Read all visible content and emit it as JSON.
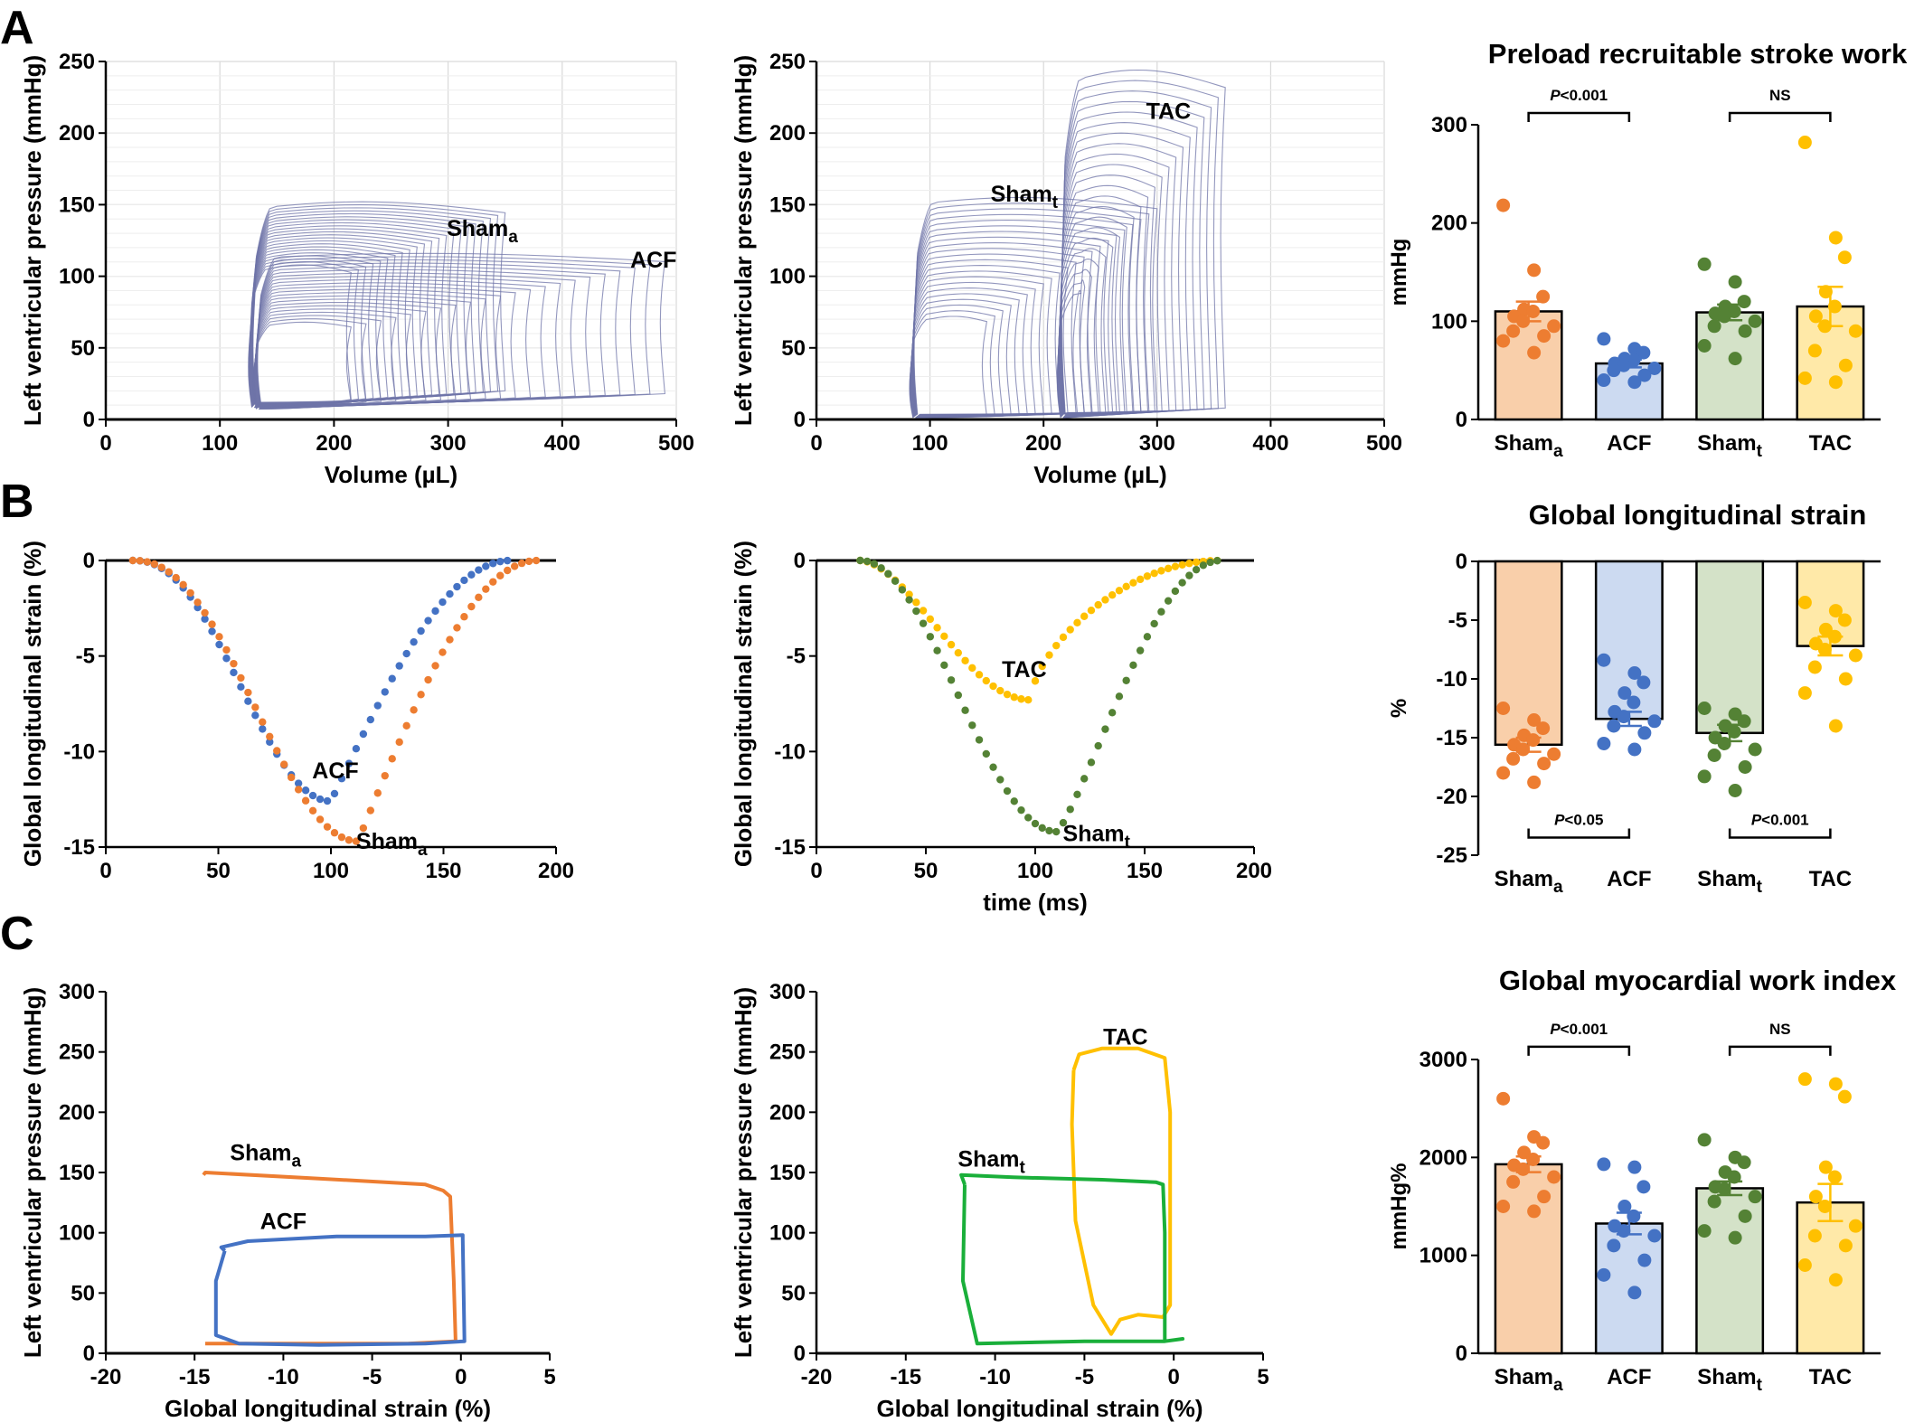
{
  "colors": {
    "orange": "#ED7D31",
    "blue": "#4472C4",
    "green": "#548235",
    "gold": "#FFC000",
    "bright_green": "#1AAF3A",
    "pv_loop": "#6F74A8",
    "bar_orange": "#F9CFAA",
    "bar_blue": "#CCDAF1",
    "bar_green": "#D4E2C8",
    "bar_gold": "#FFE9A8"
  },
  "panel_labels": [
    "A",
    "B",
    "C"
  ],
  "chart_data": [
    {
      "id": "a_left",
      "type": "line",
      "panel": "A",
      "xlabel": "Volume (µL)",
      "ylabel": "Left ventricular pressure (mmHg)",
      "xlim": [
        0,
        500
      ],
      "ylim": [
        0,
        250
      ],
      "grid": true,
      "xticks": [
        "0",
        "100",
        "200",
        "300",
        "400",
        "500"
      ],
      "yticks": [
        "0",
        "50",
        "100",
        "150",
        "200",
        "250"
      ],
      "labels": [
        {
          "text": "Sham",
          "sub": "a"
        },
        {
          "text": "ACF",
          "sub": ""
        }
      ],
      "series": [
        {
          "family": "Sham",
          "ved_range": [
            215,
            350
          ],
          "esv": 128,
          "edp_range": [
            14,
            20
          ],
          "peak_range": [
            108,
            152
          ]
        },
        {
          "family": "ACF",
          "ved_range": [
            215,
            490
          ],
          "esv": 132,
          "edp_range": [
            12,
            18
          ],
          "peak_range": [
            68,
            116
          ]
        }
      ]
    },
    {
      "id": "a_mid",
      "type": "line",
      "panel": "A",
      "xlabel": "Volume (µL)",
      "ylabel": "Left ventricular pressure (mmHg)",
      "xlim": [
        0,
        500
      ],
      "ylim": [
        0,
        250
      ],
      "grid": true,
      "xticks": [
        "0",
        "100",
        "200",
        "300",
        "400",
        "500"
      ],
      "yticks": [
        "0",
        "50",
        "100",
        "150",
        "200",
        "250"
      ],
      "labels": [
        {
          "text": "TAC",
          "sub": ""
        },
        {
          "text": "Sham",
          "sub": "t"
        }
      ],
      "series": [
        {
          "family": "Sham",
          "ved_range": [
            150,
            300
          ],
          "esv": 85,
          "edp_range": [
            2,
            6
          ],
          "peak_range": [
            72,
            155
          ]
        },
        {
          "family": "TAC",
          "ved_range": [
            230,
            360
          ],
          "esv": 215,
          "edp_range": [
            2,
            8
          ],
          "peak_range": [
            90,
            244
          ]
        }
      ]
    },
    {
      "id": "a_right",
      "type": "bar",
      "panel": "A",
      "title": "Preload recruitable stroke work",
      "ylabel": "mmHg",
      "ylim": [
        0,
        300
      ],
      "yticks": [
        "0",
        "100",
        "200",
        "300"
      ],
      "categories": [
        {
          "text": "Sham",
          "sub": "a"
        },
        {
          "text": "ACF",
          "sub": ""
        },
        {
          "text": "Sham",
          "sub": "t"
        },
        {
          "text": "TAC",
          "sub": ""
        }
      ],
      "values": [
        110,
        57,
        109,
        115
      ],
      "sem": [
        10,
        4,
        8,
        20
      ],
      "points": [
        [
          218,
          152,
          125,
          112,
          110,
          105,
          100,
          95,
          90,
          85,
          80,
          68
        ],
        [
          82,
          72,
          68,
          62,
          60,
          57,
          55,
          52,
          50,
          45,
          40,
          38
        ],
        [
          158,
          140,
          120,
          115,
          110,
          108,
          105,
          100,
          95,
          90,
          75,
          62
        ],
        [
          282,
          185,
          165,
          130,
          115,
          105,
          95,
          90,
          70,
          55,
          42,
          38
        ]
      ],
      "significance": [
        {
          "from": 0,
          "to": 1,
          "text": "P<0.001",
          "italic_p": true,
          "y": 312
        },
        {
          "from": 2,
          "to": 3,
          "text": "NS",
          "italic_p": false,
          "y": 312
        }
      ]
    },
    {
      "id": "b_left",
      "type": "scatter",
      "panel": "B",
      "xlabel": "",
      "ylabel": "Global longitudinal strain (%)",
      "xlim": [
        0,
        200
      ],
      "ylim": [
        -15,
        0
      ],
      "xticks": [
        "0",
        "50",
        "100",
        "150",
        "200"
      ],
      "yticks": [
        "0",
        "-5",
        "-10",
        "-15"
      ],
      "labels": [
        {
          "text": "ACF",
          "sub": ""
        },
        {
          "text": "Sham",
          "sub": "a"
        }
      ],
      "series": [
        {
          "family": "ACF",
          "t_start": 12,
          "t_min": 100,
          "t_end": 180,
          "min": -12.6,
          "fall_exp": 1.15,
          "rise_exp": 0.5
        },
        {
          "family": "Sham",
          "t_start": 12,
          "t_min": 112,
          "t_end": 192,
          "min": -14.7,
          "fall_exp": 1.15,
          "rise_exp": 0.5
        }
      ]
    },
    {
      "id": "b_mid",
      "type": "scatter",
      "panel": "B",
      "xlabel": "time (ms)",
      "ylabel": "Global longitudinal strain (%)",
      "xlim": [
        0,
        200
      ],
      "ylim": [
        -15,
        0
      ],
      "xticks": [
        "0",
        "50",
        "100",
        "150",
        "200"
      ],
      "yticks": [
        "0",
        "-5",
        "-10",
        "-15"
      ],
      "labels": [
        {
          "text": "TAC",
          "sub": ""
        },
        {
          "text": "Sham",
          "sub": "t"
        }
      ],
      "series": [
        {
          "family": "TAC",
          "t_start": 20,
          "t_min": 98,
          "t_end": 185,
          "min": -7.3,
          "fall_exp": 0.85,
          "rise_exp": 0.3
        },
        {
          "family": "Sham",
          "t_start": 20,
          "t_min": 110,
          "t_end": 185,
          "min": -14.2,
          "fall_exp": 1.0,
          "rise_exp": 0.6
        }
      ]
    },
    {
      "id": "b_right",
      "type": "bar",
      "panel": "B",
      "title": "Global longitudinal strain",
      "ylabel": "%",
      "ylim": [
        -25,
        0
      ],
      "yticks": [
        "0",
        "-5",
        "-10",
        "-15",
        "-20",
        "-25"
      ],
      "categories": [
        {
          "text": "Sham",
          "sub": "a"
        },
        {
          "text": "ACF",
          "sub": ""
        },
        {
          "text": "Sham",
          "sub": "t"
        },
        {
          "text": "TAC",
          "sub": ""
        }
      ],
      "values": [
        -15.6,
        -13.4,
        -14.6,
        -7.2
      ],
      "sem": [
        0.6,
        0.6,
        0.7,
        0.8
      ],
      "points": [
        [
          -12.5,
          -13.5,
          -14.2,
          -14.8,
          -15.2,
          -15.6,
          -16.0,
          -16.4,
          -16.8,
          -17.2,
          -18.0,
          -18.8
        ],
        [
          -8.4,
          -9.5,
          -10.3,
          -11.2,
          -12.0,
          -12.8,
          -13.2,
          -13.6,
          -14.0,
          -14.6,
          -15.5,
          -16.0
        ],
        [
          -12.5,
          -13.0,
          -13.6,
          -14.0,
          -14.5,
          -15.0,
          -15.5,
          -16.0,
          -16.5,
          -17.5,
          -18.3,
          -19.5
        ],
        [
          -3.5,
          -4.2,
          -5.0,
          -5.8,
          -6.4,
          -7.0,
          -7.5,
          -8.0,
          -9.0,
          -10.0,
          -11.2,
          -14.0
        ]
      ],
      "significance": [
        {
          "from": 0,
          "to": 1,
          "text": "P<0.05",
          "italic_p": true,
          "y": -23.5
        },
        {
          "from": 2,
          "to": 3,
          "text": "P<0.001",
          "italic_p": true,
          "y": -23.5
        }
      ]
    },
    {
      "id": "c_left",
      "type": "line",
      "panel": "C",
      "xlabel": "Global longitudinal strain (%)",
      "ylabel": "Left ventricular pressure (mmHg)",
      "xlim": [
        -20,
        5
      ],
      "ylim": [
        0,
        300
      ],
      "xticks": [
        "-20",
        "-15",
        "-10",
        "-5",
        "0",
        "5"
      ],
      "yticks": [
        "0",
        "50",
        "100",
        "150",
        "200",
        "250",
        "300"
      ],
      "labels": [
        {
          "text": "Sham",
          "sub": "a"
        },
        {
          "text": "ACF",
          "sub": ""
        }
      ],
      "series": [
        {
          "family": "Sham",
          "x": [
            -14.5,
            -14.4,
            -8,
            -2,
            -1,
            -0.6,
            -0.4,
            -0.3,
            -3,
            -10,
            -14.4
          ],
          "y": [
            148,
            150,
            145,
            140,
            135,
            130,
            60,
            10,
            8,
            8,
            8
          ]
        },
        {
          "family": "ACF",
          "x": [
            -13.3,
            -13.5,
            -12,
            -7,
            -2,
            0.1,
            0.1,
            0.2,
            -2,
            -8,
            -12.5,
            -13.8,
            -13.8,
            -13.3
          ],
          "y": [
            85,
            88,
            93,
            97,
            97,
            98,
            95,
            10,
            8,
            7,
            8,
            15,
            60,
            85
          ]
        }
      ]
    },
    {
      "id": "c_mid",
      "type": "line",
      "panel": "C",
      "xlabel": "Global longitudinal strain (%)",
      "ylabel": "Left ventricular pressure (mmHg)",
      "xlim": [
        -20,
        5
      ],
      "ylim": [
        0,
        300
      ],
      "xticks": [
        "-20",
        "-15",
        "-10",
        "-5",
        "0",
        "5"
      ],
      "yticks": [
        "0",
        "50",
        "100",
        "150",
        "200",
        "250",
        "300"
      ],
      "labels": [
        {
          "text": "TAC",
          "sub": ""
        },
        {
          "text": "Sham",
          "sub": "t"
        }
      ],
      "series": [
        {
          "family": "TAC",
          "x": [
            -5.6,
            -5.3,
            -4,
            -2,
            -0.5,
            -0.2,
            -0.2,
            -0.6,
            -2,
            -3,
            -3.5,
            -4.5,
            -5.5,
            -5.7,
            -5.6
          ],
          "y": [
            235,
            248,
            253,
            253,
            245,
            200,
            40,
            30,
            32,
            28,
            16,
            40,
            110,
            190,
            235
          ]
        },
        {
          "family": "Sham",
          "x": [
            -11.7,
            -11.9,
            -9,
            -4,
            -1,
            -0.6,
            -0.5,
            -0.5,
            0.5,
            -0.5,
            -5,
            -11,
            -11.8,
            -11.7
          ],
          "y": [
            140,
            148,
            146,
            144,
            142,
            140,
            100,
            10,
            12,
            10,
            10,
            8,
            60,
            140
          ]
        }
      ]
    },
    {
      "id": "c_right",
      "type": "bar",
      "panel": "C",
      "title": "Global myocardial work index",
      "ylabel": "mmHg%",
      "ylim": [
        0,
        3000
      ],
      "yticks": [
        "0",
        "1000",
        "2000",
        "3000"
      ],
      "categories": [
        {
          "text": "Sham",
          "sub": "a"
        },
        {
          "text": "ACF",
          "sub": ""
        },
        {
          "text": "Sham",
          "sub": "t"
        },
        {
          "text": "TAC",
          "sub": ""
        }
      ],
      "values": [
        1930,
        1325,
        1685,
        1540
      ],
      "sem": [
        80,
        110,
        70,
        190
      ],
      "points": [
        [
          2600,
          2210,
          2150,
          2050,
          1980,
          1920,
          1880,
          1800,
          1750,
          1600,
          1500,
          1450
        ],
        [
          1930,
          1900,
          1700,
          1500,
          1400,
          1300,
          1250,
          1200,
          1100,
          950,
          800,
          620
        ],
        [
          2180,
          2000,
          1950,
          1850,
          1800,
          1700,
          1680,
          1600,
          1550,
          1400,
          1250,
          1180
        ],
        [
          2800,
          2750,
          2620,
          1900,
          1800,
          1600,
          1500,
          1300,
          1200,
          1100,
          900,
          750
        ]
      ],
      "significance": [
        {
          "from": 0,
          "to": 1,
          "text": "P<0.001",
          "italic_p": true,
          "y": 3130
        },
        {
          "from": 2,
          "to": 3,
          "text": "NS",
          "italic_p": false,
          "y": 3130
        }
      ]
    }
  ]
}
